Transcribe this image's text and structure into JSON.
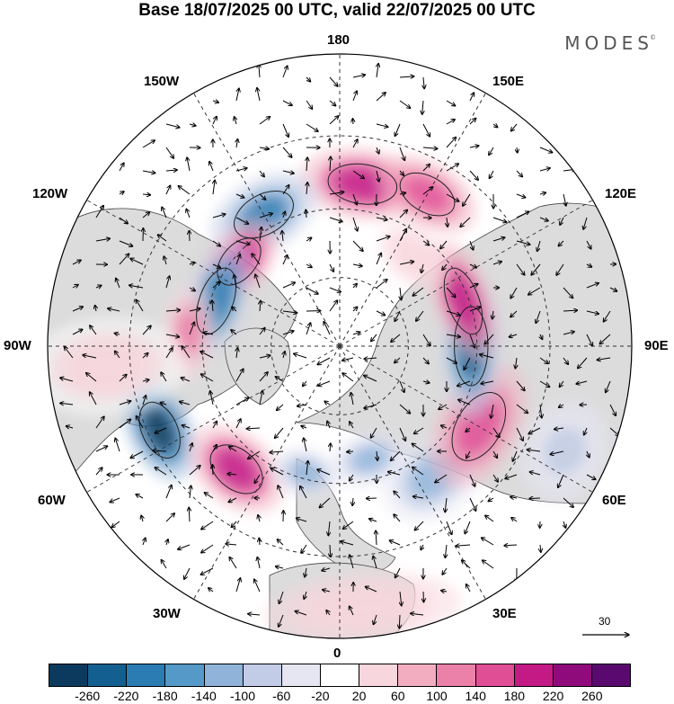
{
  "title": "Base 18/07/2025 00 UTC, valid 22/07/2025 00 UTC",
  "brand": "MODES",
  "brand_mark": "©",
  "longitude_labels": {
    "top": "180",
    "top_left": "150W",
    "top_right": "150E",
    "upper_left": "120W",
    "upper_right": "120E",
    "left": "90W",
    "right": "90E",
    "lower_left": "60W",
    "lower_right": "60E",
    "bottom_left": "30W",
    "bottom_right": "30E",
    "bottom": "0"
  },
  "reference_vector": {
    "value": "30"
  },
  "colorbar": {
    "ticks": [
      "-260",
      "-220",
      "-180",
      "-140",
      "-100",
      "-60",
      "-20",
      "20",
      "60",
      "100",
      "140",
      "180",
      "220",
      "260"
    ],
    "colors": [
      "#0b3a5e",
      "#135f8f",
      "#2b7cb2",
      "#5599c8",
      "#8fb3d9",
      "#c2cce6",
      "#e6e6f2",
      "#ffffff",
      "#f8d6dd",
      "#f2aec0",
      "#eb80a8",
      "#e04e96",
      "#c41a86",
      "#8f0a7b",
      "#5a0a6e"
    ]
  },
  "anomalies": [
    {
      "lon": 172,
      "r": 0.56,
      "rx": 70,
      "ry": 40,
      "value": 220
    },
    {
      "lon": 150,
      "r": 0.6,
      "rx": 60,
      "ry": 36,
      "value": 180
    },
    {
      "lon": -150,
      "r": 0.52,
      "rx": 65,
      "ry": 40,
      "value": -180
    },
    {
      "lon": -130,
      "r": 0.45,
      "rx": 55,
      "ry": 34,
      "value": 200
    },
    {
      "lon": -110,
      "r": 0.45,
      "rx": 70,
      "ry": 34,
      "value": -200
    },
    {
      "lon": -95,
      "r": 0.52,
      "rx": 55,
      "ry": 30,
      "value": 120
    },
    {
      "lon": -65,
      "r": 0.68,
      "rx": 60,
      "ry": 36,
      "value": -260
    },
    {
      "lon": -40,
      "r": 0.55,
      "rx": 60,
      "ry": 40,
      "value": 200
    },
    {
      "lon": -15,
      "r": 0.45,
      "rx": 40,
      "ry": 28,
      "value": -100
    },
    {
      "lon": 15,
      "r": 0.4,
      "rx": 45,
      "ry": 30,
      "value": -120
    },
    {
      "lon": 35,
      "r": 0.55,
      "rx": 60,
      "ry": 45,
      "value": -100
    },
    {
      "lon": 60,
      "r": 0.55,
      "rx": 75,
      "ry": 45,
      "value": 160
    },
    {
      "lon": 90,
      "r": 0.45,
      "rx": 80,
      "ry": 34,
      "value": -220
    },
    {
      "lon": 110,
      "r": 0.45,
      "rx": 70,
      "ry": 32,
      "value": 200
    },
    {
      "lon": 140,
      "r": 0.4,
      "rx": 45,
      "ry": 30,
      "value": 60
    },
    {
      "lon": 5,
      "r": 0.9,
      "rx": 110,
      "ry": 40,
      "value": 60
    },
    {
      "lon": -85,
      "r": 0.8,
      "rx": 55,
      "ry": 90,
      "value": 40
    },
    {
      "lon": 65,
      "r": 0.85,
      "rx": 60,
      "ry": 50,
      "value": -60
    }
  ]
}
